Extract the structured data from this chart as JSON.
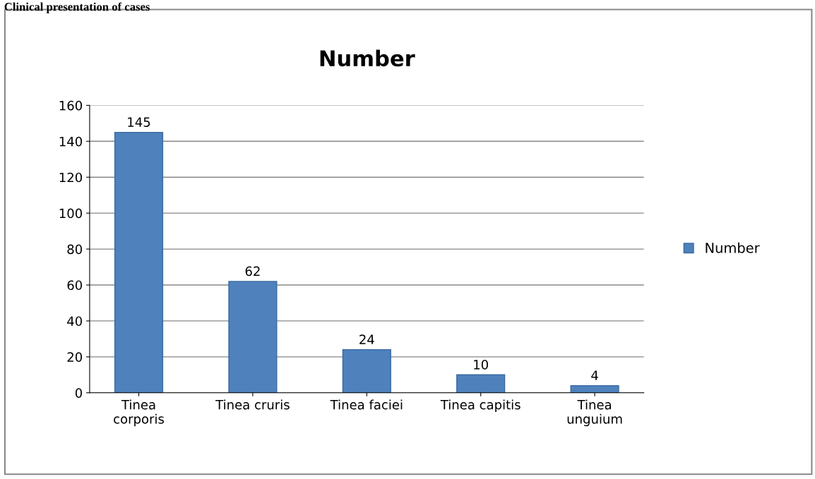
{
  "chart_data": {
    "type": "bar",
    "title": "Number",
    "annotations": [
      "Clinical presentation of cases"
    ],
    "categories": [
      "Tinea\ncorporis",
      "Tinea cruris",
      "Tinea faciei",
      "Tinea capitis",
      "Tinea\nunguium"
    ],
    "series": [
      {
        "name": "Number",
        "color": "#4f81bd",
        "values": [
          145,
          62,
          24,
          10,
          4
        ]
      }
    ],
    "ylim": [
      0,
      160
    ],
    "yticks": [
      0,
      20,
      40,
      60,
      80,
      100,
      120,
      140,
      160
    ],
    "grid": "y",
    "legend": "right",
    "data_labels": true
  }
}
